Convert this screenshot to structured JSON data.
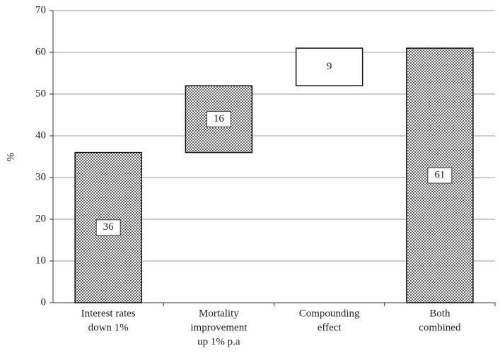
{
  "chart_data": {
    "type": "waterfall",
    "y_label": "%",
    "categories": [
      [
        "Interest rates",
        "down 1%"
      ],
      [
        "Mortality",
        "improvement",
        "up 1% p.a"
      ],
      [
        "Compounding",
        "effect"
      ],
      [
        "Both",
        "combined"
      ]
    ],
    "values": [
      36,
      16,
      9,
      61
    ],
    "is_total": [
      false,
      false,
      false,
      true
    ],
    "fills": [
      "dots",
      "dots",
      "white",
      "dots"
    ],
    "ylim": [
      0,
      70
    ],
    "yticks": [
      0,
      10,
      20,
      30,
      40,
      50,
      60,
      70
    ],
    "grid": true
  }
}
